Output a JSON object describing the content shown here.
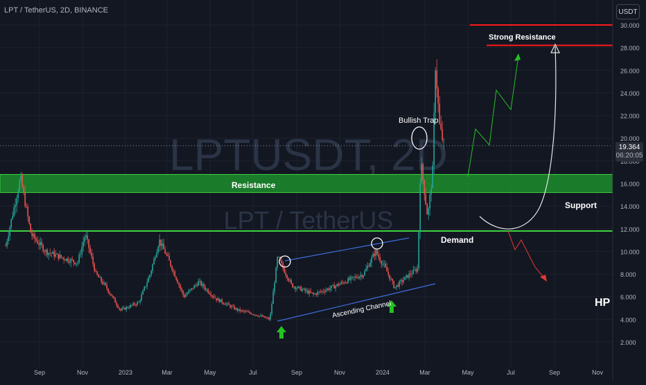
{
  "header": {
    "title": "LPT / TetherUS, 2D, BINANCE",
    "currency_button": "USDT"
  },
  "watermark": {
    "symbol": "LPTUSDT, 2D",
    "name": "LPT / TetherUS"
  },
  "last_price": {
    "value": "19.364",
    "countdown": "06:20:05"
  },
  "colors": {
    "background": "#131722",
    "up_candle": "#26a69a",
    "down_candle": "#ef5350",
    "resistance_zone": "#1e9e2e",
    "support_line": "#3fd23f",
    "strong_resistance": "#ff1a1a",
    "channel": "#3f6fe0",
    "forecast_up": "#22c322",
    "forecast_down": "#e53935",
    "forecast_arc": "#e6e6e6",
    "arrow": "#22c322"
  },
  "chart_data": {
    "type": "candlestick",
    "y_axis": {
      "ticks": [
        "2.000",
        "4.000",
        "6.000",
        "8.000",
        "10.000",
        "12.000",
        "14.000",
        "16.000",
        "18.000",
        "20.000",
        "22.000",
        "24.000",
        "26.000",
        "28.000",
        "30.000"
      ],
      "range": [
        1.0,
        30.5
      ]
    },
    "x_axis": {
      "ticks": [
        "Sep",
        "Nov",
        "2023",
        "Mar",
        "May",
        "Jul",
        "Sep",
        "Nov",
        "2024",
        "Mar",
        "May",
        "Jul",
        "Sep",
        "Nov"
      ]
    },
    "price_series": [
      {
        "date": "2022-07-15",
        "price": 10.5
      },
      {
        "date": "2022-08-05",
        "price": 16.5
      },
      {
        "date": "2022-08-20",
        "price": 11.5
      },
      {
        "date": "2022-09-10",
        "price": 10.0
      },
      {
        "date": "2022-10-01",
        "price": 9.5
      },
      {
        "date": "2022-10-25",
        "price": 9.0
      },
      {
        "date": "2022-11-05",
        "price": 11.5
      },
      {
        "date": "2022-11-20",
        "price": 8.0
      },
      {
        "date": "2022-12-05",
        "price": 6.8
      },
      {
        "date": "2022-12-25",
        "price": 4.8
      },
      {
        "date": "2023-01-20",
        "price": 5.5
      },
      {
        "date": "2023-02-05",
        "price": 8.0
      },
      {
        "date": "2023-02-18",
        "price": 11.0
      },
      {
        "date": "2023-03-05",
        "price": 9.0
      },
      {
        "date": "2023-03-25",
        "price": 6.0
      },
      {
        "date": "2023-04-15",
        "price": 7.3
      },
      {
        "date": "2023-05-10",
        "price": 5.8
      },
      {
        "date": "2023-06-10",
        "price": 4.8
      },
      {
        "date": "2023-07-01",
        "price": 4.5
      },
      {
        "date": "2023-07-25",
        "price": 4.0
      },
      {
        "date": "2023-08-05",
        "price": 9.5
      },
      {
        "date": "2023-08-25",
        "price": 7.0
      },
      {
        "date": "2023-09-25",
        "price": 6.2
      },
      {
        "date": "2023-10-20",
        "price": 6.8
      },
      {
        "date": "2023-11-15",
        "price": 7.5
      },
      {
        "date": "2023-12-05",
        "price": 8.0
      },
      {
        "date": "2023-12-22",
        "price": 10.0
      },
      {
        "date": "2024-01-05",
        "price": 8.5
      },
      {
        "date": "2024-01-18",
        "price": 6.8
      },
      {
        "date": "2024-02-05",
        "price": 7.8
      },
      {
        "date": "2024-02-20",
        "price": 8.5
      },
      {
        "date": "2024-02-24",
        "price": 18.0
      },
      {
        "date": "2024-03-05",
        "price": 13.0
      },
      {
        "date": "2024-03-12",
        "price": 17.0
      },
      {
        "date": "2024-03-16",
        "price": 26.5
      },
      {
        "date": "2024-03-22",
        "price": 21.0
      },
      {
        "date": "2024-03-28",
        "price": 19.364
      }
    ],
    "levels": {
      "resistance_zone": [
        15.2,
        16.8
      ],
      "support_line": 11.8,
      "strong_resistance": [
        28.2,
        30.0
      ]
    }
  },
  "annotations": {
    "resistance": "Resistance",
    "strong_resistance": "Strong Resistance",
    "support": "Support",
    "demand": "Demand",
    "bullish_trap": "Bullish Trap",
    "ascending_channel": "Ascending Channel",
    "author": "HP"
  }
}
